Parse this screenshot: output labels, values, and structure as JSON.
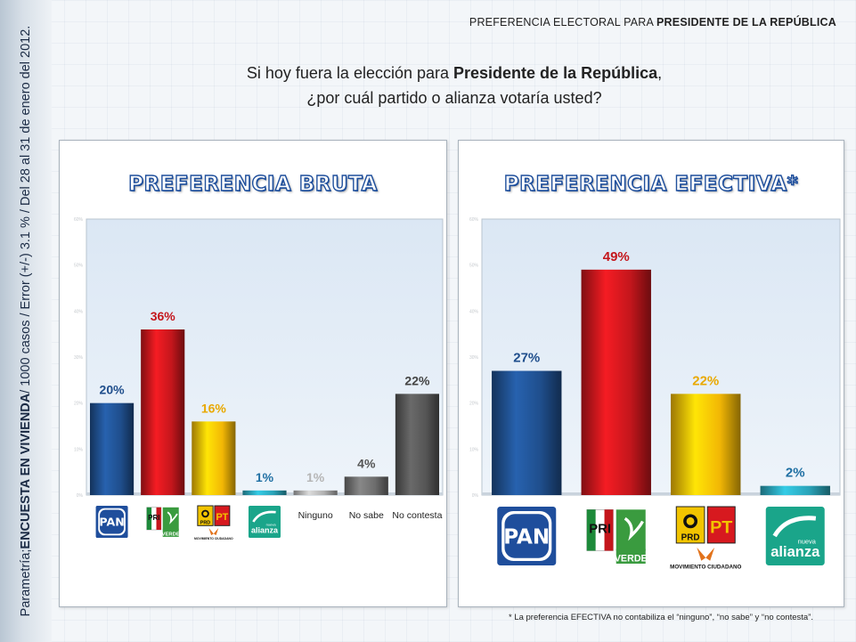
{
  "side_label": {
    "prefix": "Parametría; ",
    "bold": "ENCUESTA EN VIVIENDA",
    "suffix": " / 1000 casos / Error (+/-) 3.1 % / Del 28 al 31 de enero del 2012."
  },
  "header": {
    "title_prefix": "PREFERENCIA ELECTORAL PARA ",
    "title_bold": "PRESIDENTE DE LA REPÚBLICA"
  },
  "question": {
    "line1_prefix": "Si hoy fuera la elección para ",
    "line1_bold": "Presidente de la República",
    "line1_suffix": ",",
    "line2": "¿por cuál partido o alianza votaría usted?"
  },
  "footnote": "* La preferencia EFECTIVA no contabiliza el “ninguno”, “no sabe” y “no contesta”.",
  "logos": {
    "pan": "PAN",
    "pri": "PRI",
    "verde": "VERDE",
    "prd": "PRD",
    "pt": "PT",
    "mc": "MOVIMIENTO CIUDADANO",
    "nueva": "nueva",
    "alianza": "alianza"
  },
  "chart_data": [
    {
      "type": "bar",
      "title": "PREFERENCIA BRUTA",
      "categories": [
        "PAN",
        "PRI-PVEM",
        "PRD-PT-MC",
        "Nueva Alianza",
        "Ninguno",
        "No sabe",
        "No contesta"
      ],
      "category_labels_shown": [
        "",
        "",
        "",
        "",
        "Ninguno",
        "No sabe",
        "No contesta"
      ],
      "values": [
        20,
        36,
        16,
        1,
        1,
        4,
        22
      ],
      "data_labels": [
        "20%",
        "36%",
        "16%",
        "1%",
        "1%",
        "4%",
        "22%"
      ],
      "colors": [
        "#1f4e8c",
        "#c4161c",
        "#f2b705",
        "#2aa3b8",
        "#b0b0b0",
        "#6d6d6d",
        "#555555"
      ],
      "label_colors": [
        "#1f4e8c",
        "#c4161c",
        "#e9a800",
        "#1f6fa3",
        "#b5b5b5",
        "#555555",
        "#444444"
      ],
      "ylim": [
        0,
        60
      ],
      "yticks": [
        "0%",
        "10%",
        "20%",
        "30%",
        "40%",
        "50%",
        "60%"
      ],
      "grid": false,
      "legend": "none"
    },
    {
      "type": "bar",
      "title": "PREFERENCIA EFECTIVA*",
      "categories": [
        "PAN",
        "PRI-PVEM",
        "PRD-PT-MC",
        "Nueva Alianza"
      ],
      "values": [
        27,
        49,
        22,
        2
      ],
      "data_labels": [
        "27%",
        "49%",
        "22%",
        "2%"
      ],
      "colors": [
        "#1f4e8c",
        "#c4161c",
        "#f2b705",
        "#2aa3b8"
      ],
      "label_colors": [
        "#1f4e8c",
        "#c4161c",
        "#e9a800",
        "#1f6fa3"
      ],
      "ylim": [
        0,
        60
      ],
      "yticks": [
        "0%",
        "10%",
        "20%",
        "30%",
        "40%",
        "50%",
        "60%"
      ],
      "grid": false,
      "legend": "none"
    }
  ]
}
